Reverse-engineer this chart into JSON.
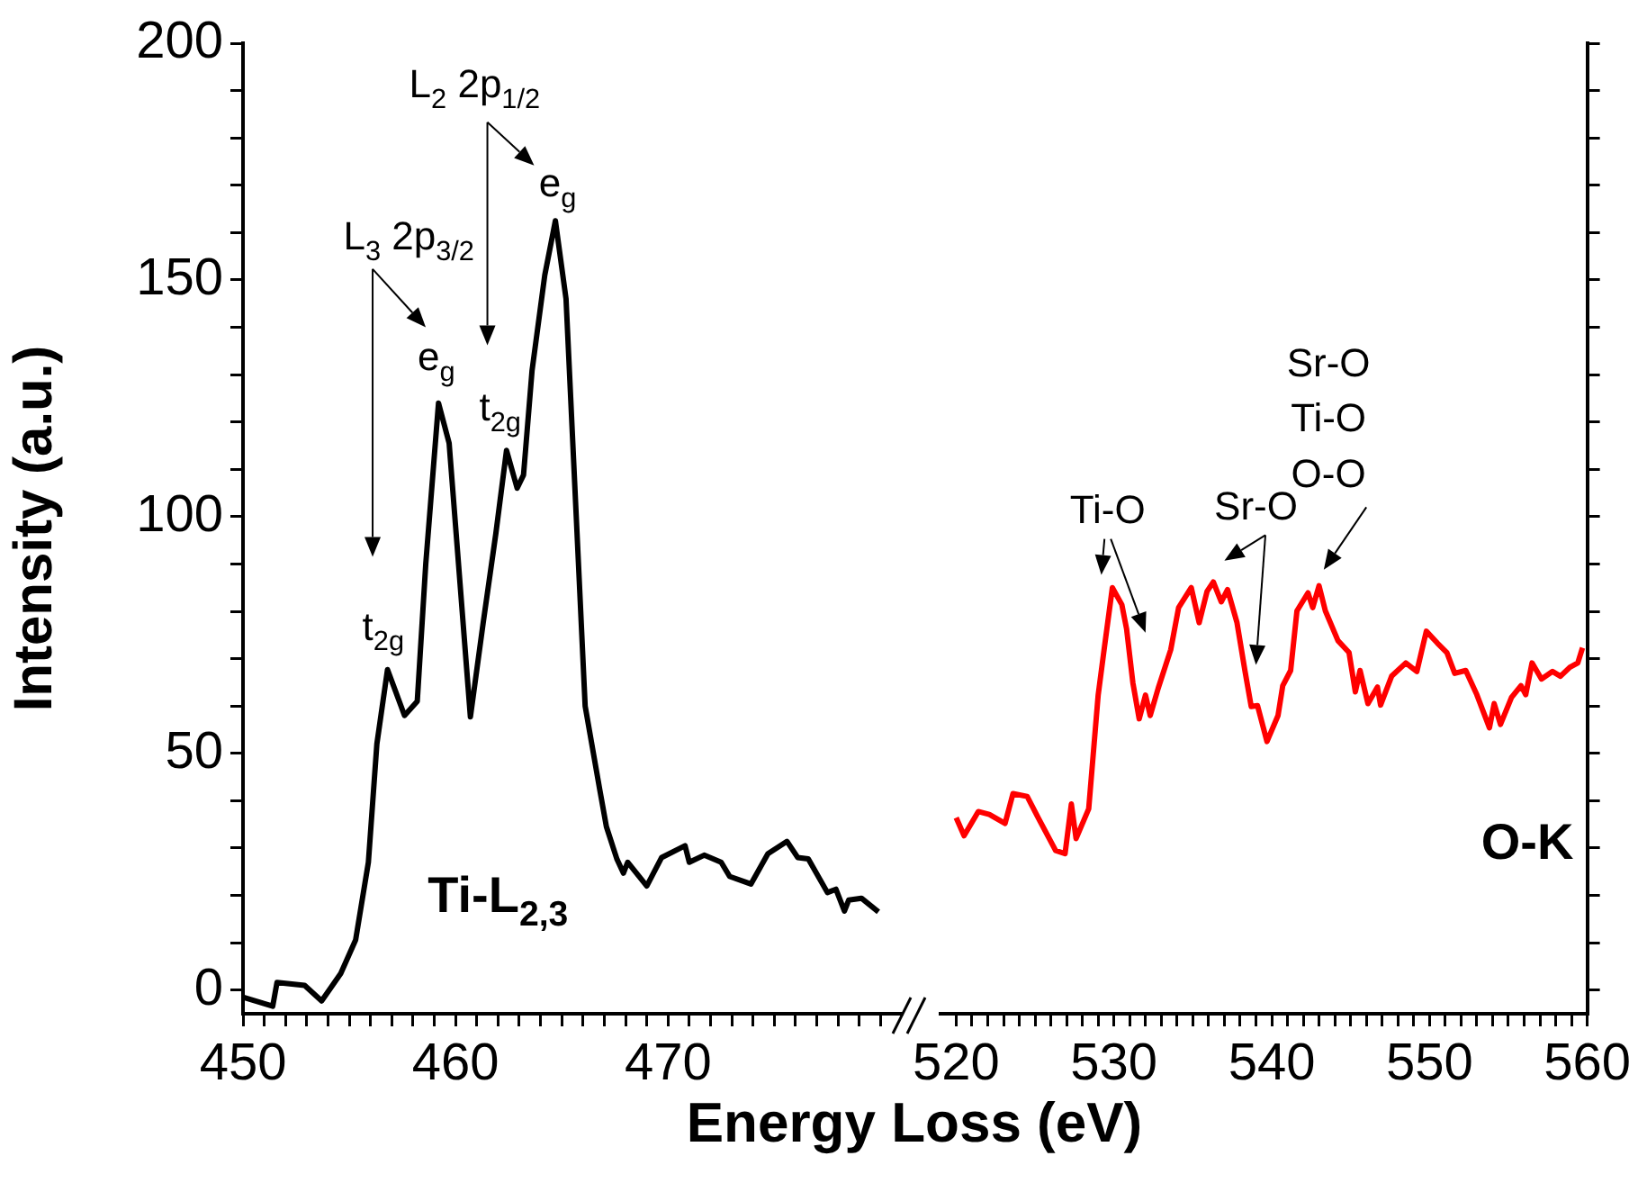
{
  "chart_data": [
    {
      "type": "line",
      "xlabel": "Energy Loss (eV)",
      "ylabel": "Intensity (a.u.)",
      "xlim": [
        450,
        481
      ],
      "xticks": [
        450,
        {
          "value": 451,
          "label": null
        },
        {
          "value": 452,
          "label": null
        },
        {
          "value": 453,
          "label": null
        },
        {
          "value": 454,
          "label": null
        },
        {
          "value": 455,
          "label": null
        },
        {
          "value": 456,
          "label": null
        },
        {
          "value": 457,
          "label": null
        },
        {
          "value": 458,
          "label": null
        },
        {
          "value": 459,
          "label": null
        },
        460,
        {
          "value": 461,
          "label": null
        },
        {
          "value": 462,
          "label": null
        },
        {
          "value": 463,
          "label": null
        },
        {
          "value": 464,
          "label": null
        },
        {
          "value": 465,
          "label": null
        },
        {
          "value": 466,
          "label": null
        },
        {
          "value": 467,
          "label": null
        },
        {
          "value": 468,
          "label": null
        },
        {
          "value": 469,
          "label": null
        },
        470,
        {
          "value": 471,
          "label": null
        },
        {
          "value": 472,
          "label": null
        },
        {
          "value": 473,
          "label": null
        },
        {
          "value": 474,
          "label": null
        },
        {
          "value": 475,
          "label": null
        },
        {
          "value": 476,
          "label": null
        },
        {
          "value": 477,
          "label": null
        },
        {
          "value": 478,
          "label": null
        },
        {
          "value": 479,
          "label": null
        },
        {
          "value": 480,
          "label": null
        }
      ],
      "ylim": [
        -5,
        200
      ],
      "yticks": [
        0,
        {
          "value": 10,
          "label": null
        },
        {
          "value": 20,
          "label": null
        },
        {
          "value": 30,
          "label": null
        },
        {
          "value": 40,
          "label": null
        },
        50,
        {
          "value": 60,
          "label": null
        },
        {
          "value": 70,
          "label": null
        },
        {
          "value": 80,
          "label": null
        },
        {
          "value": 90,
          "label": null
        },
        100,
        {
          "value": 110,
          "label": null
        },
        {
          "value": 120,
          "label": null
        },
        {
          "value": 130,
          "label": null
        },
        {
          "value": 140,
          "label": null
        },
        150,
        {
          "value": 160,
          "label": null
        },
        {
          "value": 170,
          "label": null
        },
        {
          "value": 180,
          "label": null
        },
        {
          "value": 190,
          "label": null
        },
        200
      ],
      "series": [
        {
          "color": "#000000",
          "x": [
            450,
            451.4,
            451.6,
            452.9,
            453.7,
            454.6,
            455.3,
            455.9,
            456.3,
            456.8,
            457.6,
            458.2,
            458.6,
            459.2,
            459.7,
            460.7,
            461.3,
            461.9,
            462.4,
            462.9,
            463.2,
            463.6,
            464.2,
            464.7,
            465.2,
            466.1,
            466.8,
            467.1,
            467.6,
            467.9,
            468.1,
            469,
            469.7,
            470.8,
            471,
            471.7,
            472.5,
            472.9,
            473.9,
            474.7,
            475.6,
            476.1,
            476.6,
            477.5,
            477.9,
            478.3,
            478.5,
            479.1,
            479.9
          ],
          "values": [
            -1.5,
            -3.4,
            1.6,
            1,
            -2.3,
            3.5,
            10.6,
            27,
            52,
            67.7,
            58,
            61,
            90,
            124,
            115.5,
            57.7,
            77.5,
            96.5,
            114,
            106,
            108.8,
            130.8,
            151,
            162.5,
            146,
            60,
            42,
            34.5,
            27.6,
            24.7,
            27,
            22,
            28,
            30.5,
            27,
            28.5,
            27,
            24,
            22.4,
            28.8,
            31.4,
            28,
            27.7,
            20.6,
            21.3,
            16.7,
            19,
            19.4,
            16.5
          ]
        }
      ],
      "annotations": [
        "L$_{3}$ 2p$_{3/2}$",
        "L$_{2}$ 2p$_{1/2}$",
        "t$_{2g}$",
        "e$_{g}$",
        "t$_{2g}$",
        "e$_{g}$",
        "Ti-L$_{2,3}$"
      ]
    },
    {
      "type": "line",
      "tick_labels": "x",
      "xlim": [
        519,
        560
      ],
      "xticks": [
        520,
        {
          "value": 521,
          "label": null
        },
        {
          "value": 522,
          "label": null
        },
        {
          "value": 523,
          "label": null
        },
        {
          "value": 524,
          "label": null
        },
        {
          "value": 525,
          "label": null
        },
        {
          "value": 526,
          "label": null
        },
        {
          "value": 527,
          "label": null
        },
        {
          "value": 528,
          "label": null
        },
        {
          "value": 529,
          "label": null
        },
        530,
        {
          "value": 531,
          "label": null
        },
        {
          "value": 532,
          "label": null
        },
        {
          "value": 533,
          "label": null
        },
        {
          "value": 534,
          "label": null
        },
        {
          "value": 535,
          "label": null
        },
        {
          "value": 536,
          "label": null
        },
        {
          "value": 537,
          "label": null
        },
        {
          "value": 538,
          "label": null
        },
        {
          "value": 539,
          "label": null
        },
        540,
        {
          "value": 541,
          "label": null
        },
        {
          "value": 542,
          "label": null
        },
        {
          "value": 543,
          "label": null
        },
        {
          "value": 544,
          "label": null
        },
        {
          "value": 545,
          "label": null
        },
        {
          "value": 546,
          "label": null
        },
        {
          "value": 547,
          "label": null
        },
        {
          "value": 548,
          "label": null
        },
        {
          "value": 549,
          "label": null
        },
        550,
        {
          "value": 551,
          "label": null
        },
        {
          "value": 552,
          "label": null
        },
        {
          "value": 553,
          "label": null
        },
        {
          "value": 554,
          "label": null
        },
        {
          "value": 555,
          "label": null
        },
        {
          "value": 556,
          "label": null
        },
        {
          "value": 557,
          "label": null
        },
        {
          "value": 558,
          "label": null
        },
        {
          "value": 559,
          "label": null
        },
        560
      ],
      "ylim": [
        -5,
        200
      ],
      "yticks": [
        0,
        {
          "value": 10,
          "label": null
        },
        {
          "value": 20,
          "label": null
        },
        {
          "value": 30,
          "label": null
        },
        {
          "value": 40,
          "label": null
        },
        50,
        {
          "value": 60,
          "label": null
        },
        {
          "value": 70,
          "label": null
        },
        {
          "value": 80,
          "label": null
        },
        {
          "value": 90,
          "label": null
        },
        100,
        {
          "value": 110,
          "label": null
        },
        {
          "value": 120,
          "label": null
        },
        {
          "value": 130,
          "label": null
        },
        {
          "value": 140,
          "label": null
        },
        150,
        {
          "value": 160,
          "label": null
        },
        {
          "value": 170,
          "label": null
        },
        {
          "value": 180,
          "label": null
        },
        {
          "value": 190,
          "label": null
        },
        200
      ],
      "series": [
        {
          "color": "#ff0000",
          "x": [
            520,
            520.5,
            521.4,
            522.1,
            523.1,
            523.6,
            524.5,
            525.2,
            526.3,
            526.9,
            527.3,
            527.6,
            528.4,
            529,
            529.4,
            529.9,
            530.5,
            530.8,
            531.2,
            531.6,
            532,
            532.3,
            532.8,
            533.6,
            534.1,
            534.9,
            535.4,
            535.9,
            536.3,
            536.8,
            537.2,
            537.8,
            538.3,
            538.7,
            539.1,
            539.7,
            540.4,
            540.7,
            541.2,
            541.6,
            542.3,
            542.6,
            543,
            543.4,
            544.2,
            544.9,
            545.3,
            545.6,
            546.1,
            546.7,
            546.9,
            547.6,
            548.5,
            549.2,
            549.8,
            550.5,
            551.1,
            551.6,
            552.3,
            553,
            553.8,
            554.1,
            554.5,
            555.2,
            555.8,
            556.1,
            556.5,
            557.1,
            557.8,
            558.3,
            558.9,
            559.4,
            559.7
          ],
          "values": [
            36.4,
            32.6,
            37.7,
            37.1,
            35.2,
            41.5,
            40.9,
            36.4,
            29.5,
            28.8,
            39.3,
            32,
            38.3,
            62.3,
            72.5,
            85,
            81.4,
            76.3,
            64.9,
            57.3,
            62.3,
            58,
            63.7,
            71.9,
            80.8,
            85,
            77.6,
            84.2,
            86.2,
            82,
            84.6,
            77.6,
            67.5,
            59.9,
            60.1,
            52.5,
            58,
            64.3,
            67.5,
            80.1,
            83.9,
            80.8,
            85.4,
            80.1,
            73.8,
            71.3,
            63,
            67.5,
            60.5,
            64,
            60.2,
            66.3,
            69.1,
            67.3,
            75.8,
            73.3,
            71.3,
            66.9,
            67.5,
            62.4,
            55.4,
            60.5,
            56.1,
            61.8,
            64.3,
            62.4,
            69.1,
            65.7,
            67.3,
            66.3,
            68.2,
            69.1,
            72.3
          ]
        }
      ],
      "annotations": [
        "Ti-O",
        "Sr-O",
        "Sr-O\nTi-O\nO-O",
        "O-K"
      ]
    }
  ]
}
